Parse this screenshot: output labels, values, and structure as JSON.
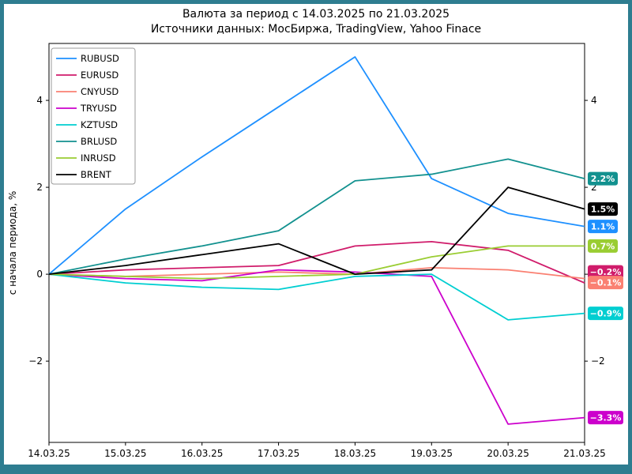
{
  "window": {
    "border_color": "#2e7d90"
  },
  "chart_data": {
    "type": "line",
    "title": "Валюта за период с 14.03.2025 по 21.03.2025",
    "subtitle": "Источники данных: МосБиржа, TradingView, Yahoo Finace",
    "ylabel": "с начала периода, %",
    "xlabel": "",
    "categories": [
      "14.03.25",
      "15.03.25",
      "16.03.25",
      "17.03.25",
      "18.03.25",
      "19.03.25",
      "20.03.25",
      "21.03.25"
    ],
    "ylim": [
      -3.87,
      5.31
    ],
    "yticks": [
      -2,
      0,
      2,
      4
    ],
    "grid": false,
    "legend_position": "upper-left",
    "series": [
      {
        "name": "RUBUSD",
        "color": "#1e90ff",
        "values": [
          0,
          1.5,
          2.7,
          3.85,
          5.0,
          2.2,
          1.4,
          1.1
        ],
        "end_label": "1.1%"
      },
      {
        "name": "EURUSD",
        "color": "#d01c6b",
        "values": [
          0,
          0.1,
          0.15,
          0.2,
          0.65,
          0.75,
          0.55,
          -0.2
        ],
        "end_label": "-0.2%",
        "end_label_dy": -14
      },
      {
        "name": "CNYUSD",
        "color": "#fa8072",
        "values": [
          0,
          -0.05,
          0.0,
          0.05,
          0.0,
          0.15,
          0.1,
          -0.1
        ],
        "end_label": "-0.1%",
        "end_label_dy": 5
      },
      {
        "name": "TRYUSD",
        "color": "#cc00cc",
        "values": [
          0,
          -0.1,
          -0.15,
          0.1,
          0.05,
          -0.05,
          -3.45,
          -3.3
        ],
        "end_label": "-3.3%"
      },
      {
        "name": "KZTUSD",
        "color": "#00ced1",
        "values": [
          0,
          -0.2,
          -0.3,
          -0.35,
          -0.05,
          0.0,
          -1.05,
          -0.9
        ],
        "end_label": "-0.9%"
      },
      {
        "name": "BRLUSD",
        "color": "#12918f",
        "values": [
          0,
          0.35,
          0.65,
          1.0,
          2.15,
          2.3,
          2.65,
          2.2
        ],
        "end_label": "2.2%"
      },
      {
        "name": "INRUSD",
        "color": "#9acd32",
        "values": [
          0,
          -0.05,
          -0.1,
          -0.05,
          0.0,
          0.4,
          0.65,
          0.65
        ],
        "end_label": "0.7%"
      },
      {
        "name": "BRENT",
        "color": "#000000",
        "values": [
          0,
          0.2,
          0.45,
          0.7,
          0.0,
          0.1,
          2.0,
          1.5
        ],
        "end_label": "1.5%"
      }
    ]
  }
}
